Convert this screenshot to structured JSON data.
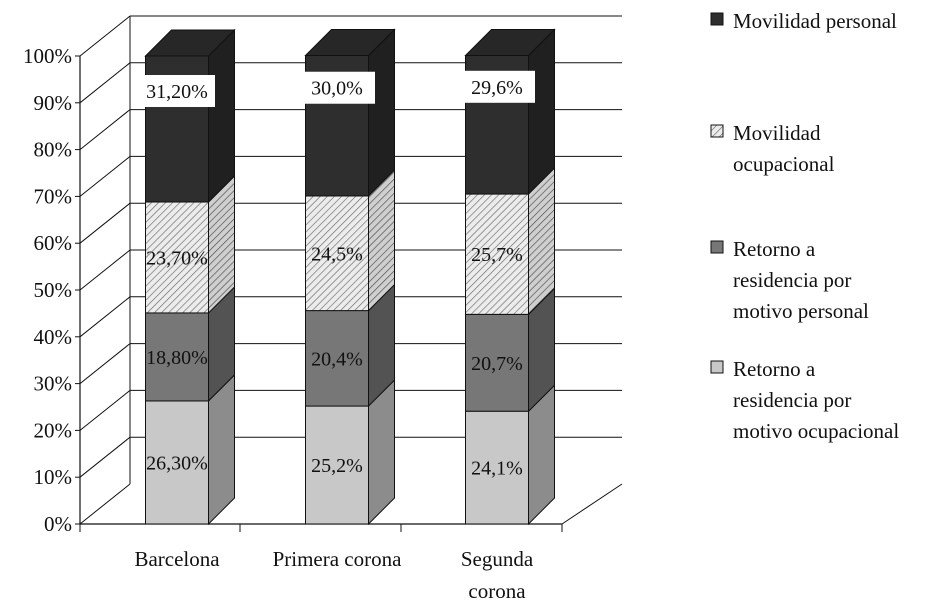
{
  "chart_data": {
    "type": "bar",
    "stacked": true,
    "percent_stacked": true,
    "three_d": true,
    "categories": [
      "Barcelona",
      "Primera corona",
      "Segunda corona"
    ],
    "series": [
      {
        "name": "Retorno a residencia por motivo ocupacional",
        "values": [
          26.3,
          25.2,
          24.1
        ],
        "labels": [
          "26,30%",
          "25,2%",
          "24,1%"
        ],
        "color": "#c8c8c8",
        "pattern": "solid"
      },
      {
        "name": "Retorno a residencia por motivo personal",
        "values": [
          18.8,
          20.4,
          20.7
        ],
        "labels": [
          "18,80%",
          "20,4%",
          "20,7%"
        ],
        "color": "#777777",
        "pattern": "solid"
      },
      {
        "name": "Movilidad ocupacional",
        "values": [
          23.7,
          24.5,
          25.7
        ],
        "labels": [
          "23,70%",
          "24,5%",
          "25,7%"
        ],
        "color": "#e6e6e6",
        "pattern": "hatch"
      },
      {
        "name": "Movilidad personal",
        "values": [
          31.2,
          30.0,
          29.6
        ],
        "labels": [
          "31,20%",
          "30,0%",
          "29,6%"
        ],
        "color": "#2e2e2e",
        "pattern": "solid"
      }
    ],
    "y_ticks": [
      "0%",
      "10%",
      "20%",
      "30%",
      "40%",
      "50%",
      "60%",
      "70%",
      "80%",
      "90%",
      "100%"
    ],
    "ylim": [
      0,
      100
    ],
    "grid": true,
    "legend_position": "right",
    "legend": [
      {
        "lines": [
          "Movilidad personal"
        ]
      },
      {
        "lines": [
          "Movilidad",
          "ocupacional"
        ]
      },
      {
        "lines": [
          "Retorno a",
          "residencia por",
          "motivo personal"
        ]
      },
      {
        "lines": [
          "Retorno a",
          "residencia por",
          "motivo ocupacional"
        ]
      }
    ],
    "category_lines": [
      [
        "Barcelona"
      ],
      [
        "Primera corona"
      ],
      [
        "Segunda",
        "corona"
      ]
    ]
  }
}
